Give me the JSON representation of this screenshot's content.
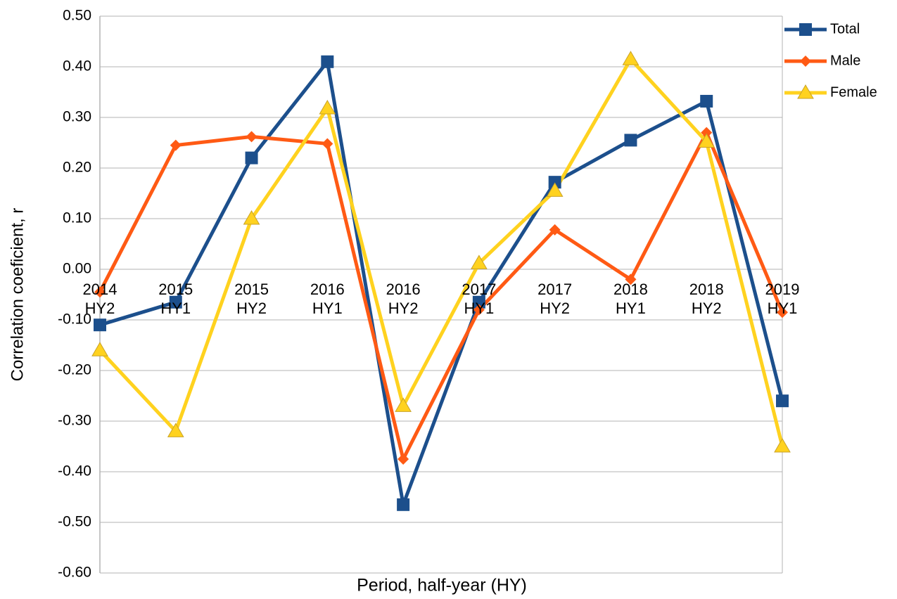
{
  "chart_data": {
    "type": "line",
    "x_label": "Period, half-year (HY)",
    "y_label": "Correlation coeficient, r",
    "categories": [
      "2014\nHY2",
      "2015\nHY1",
      "2015\nHY2",
      "2016\nHY1",
      "2016\nHY2",
      "2017\nHY1",
      "2017\nHY2",
      "2018\nHY1",
      "2018\nHY2",
      "2019\nHY1"
    ],
    "series": [
      {
        "name": "Total",
        "color": "#1c4f8c",
        "marker": "square",
        "values": [
          -0.11,
          -0.065,
          0.22,
          0.41,
          -0.465,
          -0.065,
          0.172,
          0.255,
          0.332,
          -0.26
        ]
      },
      {
        "name": "Male",
        "color": "#ff5a14",
        "marker": "diamond",
        "values": [
          -0.045,
          0.245,
          0.262,
          0.248,
          -0.375,
          -0.08,
          0.078,
          -0.02,
          0.27,
          -0.085
        ]
      },
      {
        "name": "Female",
        "color": "#ffd21f",
        "marker": "triangle",
        "values": [
          -0.16,
          -0.32,
          0.1,
          0.318,
          -0.27,
          0.012,
          0.155,
          0.415,
          0.252,
          -0.35
        ]
      }
    ],
    "ylim": [
      -0.6,
      0.5
    ],
    "yticks": [
      {
        "value": -0.6,
        "label": "-0.60"
      },
      {
        "value": -0.5,
        "label": "-0.50"
      },
      {
        "value": -0.4,
        "label": "-0.40"
      },
      {
        "value": -0.3,
        "label": "-0.30"
      },
      {
        "value": -0.2,
        "label": "-0.20"
      },
      {
        "value": -0.1,
        "label": "-0.10"
      },
      {
        "value": 0,
        "label": "0.00"
      },
      {
        "value": 0.1,
        "label": "0.10"
      },
      {
        "value": 0.2,
        "label": "0.20"
      },
      {
        "value": 0.3,
        "label": "0.30"
      },
      {
        "value": 0.4,
        "label": "0.40"
      },
      {
        "value": 0.5,
        "label": "0.50"
      }
    ],
    "grid": true,
    "legend": "top-right"
  }
}
